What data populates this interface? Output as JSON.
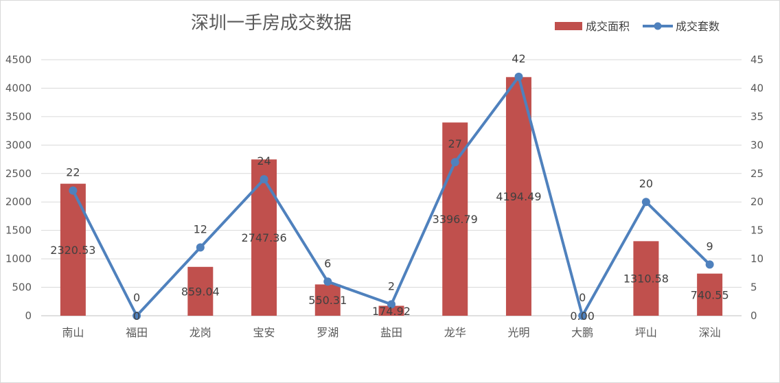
{
  "chart_data": {
    "type": "bar",
    "title": "深圳一手房成交数据",
    "categories": [
      "南山",
      "福田",
      "龙岗",
      "宝安",
      "罗湖",
      "盐田",
      "龙华",
      "光明",
      "大鹏",
      "坪山",
      "深汕"
    ],
    "series": [
      {
        "name": "成交面积",
        "type": "bar",
        "axis": "left",
        "color": "#c0504d",
        "values": [
          2320.53,
          0,
          859.04,
          2747.36,
          550.31,
          174.92,
          3396.79,
          4194.49,
          0,
          1310.58,
          740.55
        ],
        "labels": [
          "2320.53",
          "0",
          "859.04",
          "2747.36",
          "550.31",
          "174.92",
          "3396.79",
          "4194.49",
          "0.00",
          "1310.58",
          "740.55"
        ]
      },
      {
        "name": "成交套数",
        "type": "line",
        "axis": "right",
        "color": "#4f81bd",
        "values": [
          22,
          0,
          12,
          24,
          6,
          2,
          27,
          42,
          0,
          20,
          9
        ],
        "labels": [
          "22",
          "0",
          "12",
          "24",
          "6",
          "2",
          "27",
          "42",
          "0",
          "20",
          "9"
        ]
      }
    ],
    "ylim_left": [
      0,
      4500
    ],
    "yticks_left": [
      "0",
      "500",
      "1000",
      "1500",
      "2000",
      "2500",
      "3000",
      "3500",
      "4000",
      "4500"
    ],
    "ylim_right": [
      0,
      45
    ],
    "yticks_right": [
      "0",
      "5",
      "10",
      "15",
      "20",
      "25",
      "30",
      "35",
      "40",
      "45"
    ],
    "grid": true,
    "legend_position": "top-right"
  }
}
